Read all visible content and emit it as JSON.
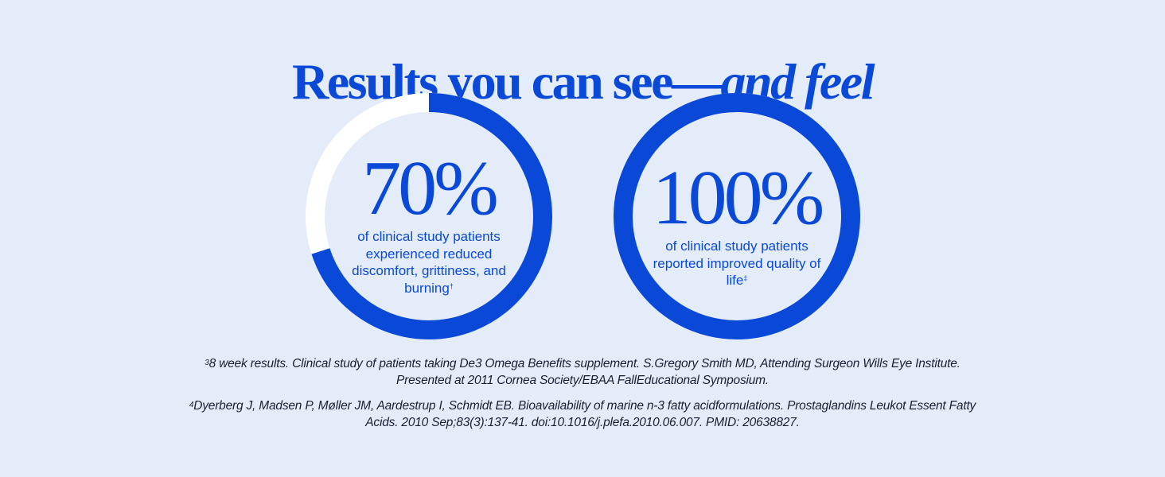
{
  "title": {
    "main": "Results you can see—",
    "emphasis": "and feel"
  },
  "stats": [
    {
      "value": "70%",
      "percent": 70,
      "description": "of clinical study patients experienced reduced discomfort, grittiness, and burning",
      "mark": "†"
    },
    {
      "value": "100%",
      "percent": 100,
      "description": "of clinical study patients reported improved quality of life",
      "mark": "‡"
    }
  ],
  "footnotes": [
    {
      "mark": "3",
      "text": "8 week results. Clinical study of patients taking De3 Omega Benefits supplement. S.Gregory Smith MD, Attending Surgeon Wills Eye Institute. Presented at 2011 Cornea Society/EBAA FallEducational Symposium."
    },
    {
      "mark": "4",
      "text": "Dyerberg J, Madsen P, Møller JM, Aardestrup I, Schmidt EB. Bioavailability of marine n-3 fatty acidformulations. Prostaglandins Leukot Essent Fatty Acids. 2010 Sep;83(3):137-41. doi:10.1016/j.plefa.2010.06.007. PMID: 20638827."
    }
  ],
  "colors": {
    "background": "#e4ecf9",
    "accent": "#0a49d8",
    "track": "#ffffff",
    "footnote_text": "#1b1f35"
  }
}
